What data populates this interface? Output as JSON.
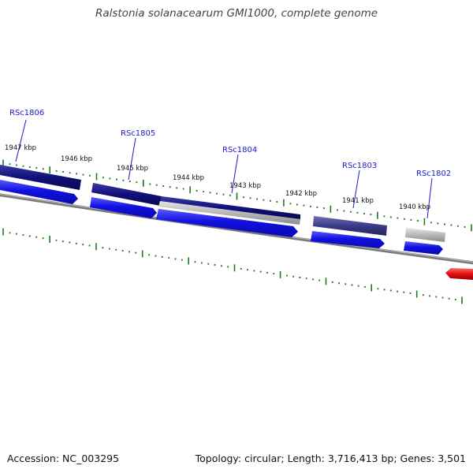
{
  "title": "Ralstonia solanacearum GMI1000, complete genome",
  "footer": {
    "accession": "Accession: NC_003295",
    "summary": "Topology: circular; Length: 3,716,413 bp; Genes: 3,501"
  },
  "genes": [
    "RSc1806",
    "RSc1805",
    "RSc1804",
    "RSc1803",
    "RSc1802"
  ],
  "kbp_labels": [
    "1947 kbp",
    "1946 kbp",
    "1945 kbp",
    "1944 kbp",
    "1943 kbp",
    "1942 kbp",
    "1941 kbp",
    "1940 kbp"
  ],
  "colors": {
    "tick": "#1f7a1f",
    "backbone": "#7a7a7a",
    "gene_forward": "#1010e0",
    "feature_dark": "#10107a",
    "feature_mid": "#3a3a8a",
    "feature_gray": "#b8b8b8",
    "gene_other_strand": "#e01010",
    "label": "#1a1acc"
  }
}
